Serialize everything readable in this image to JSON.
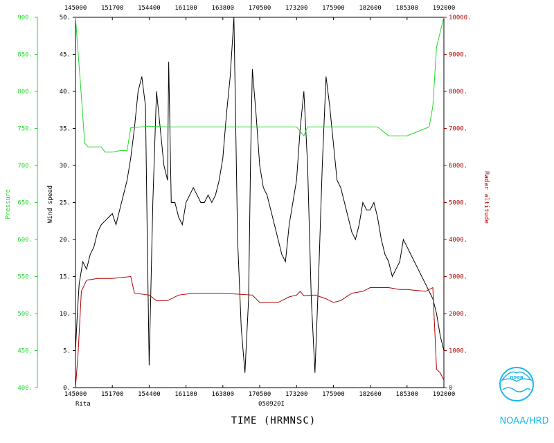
{
  "colors": {
    "pressure": "#22d62a",
    "wind": "#000000",
    "altitude": "#b00000",
    "noaa": "#18b8f0",
    "frame": "#000000"
  },
  "labels": {
    "storm": "Rita",
    "date": "050920I",
    "xtitle": "TIME (HRMNSC)",
    "left_outer_title": "Pressure",
    "left_inner_title": "Wind speed",
    "right_title": "Radar altitude",
    "agency": "NOAA/HRD",
    "logo_text": "noaa"
  },
  "icon": "noaa-logo-icon",
  "chart_data": {
    "type": "line",
    "x_ticks": [
      "145000",
      "151700",
      "154400",
      "161100",
      "163800",
      "170500",
      "173200",
      "175900",
      "182600",
      "185300",
      "192000"
    ],
    "x_domain": [
      0,
      100
    ],
    "wind_axis": {
      "label": "Wind speed",
      "ylim": [
        0,
        50
      ],
      "ticks": [
        "0.",
        "5.",
        "10.",
        "15.",
        "20.",
        "25.",
        "30.",
        "35.",
        "40.",
        "45.",
        "50."
      ]
    },
    "pressure_axis": {
      "label": "Pressure",
      "ylim": [
        400,
        900
      ],
      "ticks": [
        "400.",
        "450.",
        "500.",
        "550.",
        "600.",
        "650.",
        "700.",
        "750.",
        "800.",
        "850.",
        "900."
      ]
    },
    "altitude_axis": {
      "label": "Radar altitude",
      "ylim": [
        0,
        10000
      ],
      "ticks": [
        "0",
        "1000.",
        "2000.",
        "3000.",
        "4000.",
        "5000.",
        "6000.",
        "7000.",
        "8000.",
        "9000.",
        "10000."
      ]
    },
    "series": [
      {
        "name": "Wind speed",
        "axis": "wind",
        "x": [
          0,
          0.5,
          1,
          2,
          3,
          4,
          5,
          6,
          7,
          8,
          9,
          10,
          11,
          12,
          13,
          14,
          15,
          16,
          17,
          18,
          19,
          19.5,
          20,
          21,
          22,
          23,
          24,
          25,
          25.3,
          26,
          27,
          28,
          29,
          30,
          31,
          32,
          33,
          34,
          35,
          36,
          37,
          38,
          39,
          40,
          41,
          42,
          43,
          44,
          45,
          46,
          47,
          47.5,
          48,
          49,
          50,
          51,
          52,
          53,
          54,
          55,
          56,
          57,
          58,
          59,
          60,
          61,
          62,
          63,
          64,
          65,
          66,
          67,
          68,
          69,
          70,
          71,
          72,
          73,
          74,
          75,
          76,
          77,
          78,
          79,
          80,
          81,
          82,
          83,
          84,
          85,
          86,
          87,
          88,
          89,
          90,
          91,
          92,
          93,
          94,
          95,
          96,
          97,
          98,
          99,
          100
        ],
        "y": [
          5,
          10,
          14,
          17,
          16,
          18,
          19,
          21,
          22,
          22.5,
          23,
          23.5,
          22,
          24,
          26,
          28,
          31,
          35,
          40,
          42,
          38,
          20,
          3,
          25,
          40,
          35,
          30,
          28,
          44,
          25,
          25,
          23,
          22,
          25,
          26,
          27,
          26,
          25,
          25,
          26,
          25,
          26,
          28,
          31,
          37,
          42,
          50,
          20,
          8,
          2,
          12,
          30,
          43,
          37,
          30,
          27,
          26,
          24,
          22,
          20,
          18,
          17,
          22,
          25,
          28,
          35,
          40,
          30,
          12,
          2,
          15,
          30,
          42,
          38,
          33,
          28,
          27,
          25,
          23,
          21,
          20,
          22,
          25,
          24,
          24,
          25,
          23,
          20,
          18,
          17,
          15,
          16,
          17,
          20,
          19,
          18,
          17,
          16,
          15,
          14,
          13,
          12,
          10,
          7,
          5
        ]
      },
      {
        "name": "Pressure",
        "axis": "pressure",
        "x": [
          0,
          1.5,
          2.5,
          3.5,
          5,
          6,
          7,
          8,
          9,
          10,
          11,
          12,
          13,
          14,
          15,
          15.6,
          20,
          25,
          30,
          35,
          40,
          45,
          50,
          55,
          60,
          62,
          63,
          64,
          70,
          75,
          79,
          80,
          81,
          82,
          85,
          90,
          95,
          96,
          97,
          98,
          100
        ],
        "y": [
          900,
          800,
          730,
          725,
          725,
          725,
          725,
          718,
          718,
          718,
          719,
          720,
          720,
          720,
          751,
          751,
          753,
          752,
          752,
          752,
          752,
          752,
          752,
          752,
          752,
          740,
          752,
          752,
          752,
          752,
          752,
          752,
          752,
          752,
          740,
          740,
          750,
          752,
          780,
          860,
          900
        ]
      },
      {
        "name": "Radar altitude",
        "axis": "altitude",
        "x": [
          0,
          0.7,
          1.6,
          3,
          6,
          10,
          15,
          16,
          20,
          22,
          25,
          28,
          32,
          40,
          48,
          50,
          55,
          58,
          60,
          61,
          62,
          65,
          68,
          70,
          72,
          75,
          78,
          80,
          82,
          85,
          88,
          90,
          95,
          97,
          98,
          99,
          100
        ],
        "y": [
          0,
          900,
          2600,
          2900,
          2950,
          2950,
          3000,
          2550,
          2500,
          2350,
          2350,
          2500,
          2550,
          2550,
          2500,
          2300,
          2300,
          2450,
          2500,
          2600,
          2480,
          2500,
          2400,
          2300,
          2350,
          2550,
          2600,
          2700,
          2700,
          2700,
          2650,
          2650,
          2600,
          2700,
          500,
          400,
          200
        ]
      }
    ],
    "grid": false,
    "legend": "none"
  }
}
